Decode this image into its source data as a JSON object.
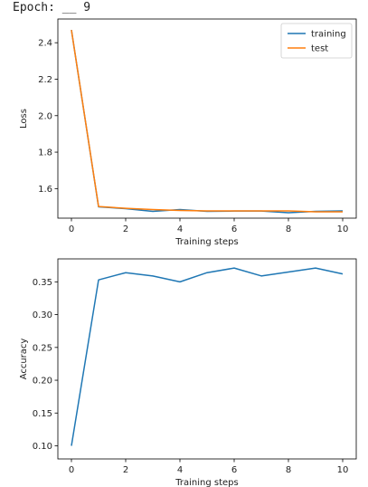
{
  "epoch_label": "Epoch: __ 9",
  "chart_data": [
    {
      "type": "line",
      "xlabel": "Training steps",
      "ylabel": "Loss",
      "xlim": [
        -0.5,
        10.5
      ],
      "ylim": [
        1.438,
        2.53
      ],
      "xticks": [
        0,
        2,
        4,
        6,
        8,
        10
      ],
      "yticks": [
        1.6,
        1.8,
        2.0,
        2.2,
        2.4
      ],
      "ytick_labels": [
        "1.6",
        "1.8",
        "2.0",
        "2.2",
        "2.4"
      ],
      "grid": false,
      "legend": "top-right",
      "x": [
        0,
        1,
        2,
        3,
        4,
        5,
        6,
        7,
        8,
        9,
        10
      ],
      "series": [
        {
          "name": "training",
          "color": "#1f77b4",
          "values": [
            2.47,
            1.5,
            1.49,
            1.475,
            1.485,
            1.475,
            1.477,
            1.477,
            1.468,
            1.475,
            1.478
          ]
        },
        {
          "name": "test",
          "color": "#ff7f0e",
          "values": [
            2.47,
            1.502,
            1.492,
            1.485,
            1.48,
            1.478,
            1.478,
            1.478,
            1.478,
            1.473,
            1.473
          ]
        }
      ]
    },
    {
      "type": "line",
      "xlabel": "Training steps",
      "ylabel": "Accuracy",
      "xlim": [
        -0.5,
        10.5
      ],
      "ylim": [
        0.08,
        0.385
      ],
      "xticks": [
        0,
        2,
        4,
        6,
        8,
        10
      ],
      "yticks": [
        0.1,
        0.15,
        0.2,
        0.25,
        0.3,
        0.35
      ],
      "ytick_labels": [
        "0.10",
        "0.15",
        "0.20",
        "0.25",
        "0.30",
        "0.35"
      ],
      "grid": false,
      "x": [
        0,
        1,
        2,
        3,
        4,
        5,
        6,
        7,
        8,
        9,
        10
      ],
      "series": [
        {
          "color": "#1f77b4",
          "values": [
            0.1,
            0.353,
            0.364,
            0.359,
            0.35,
            0.364,
            0.371,
            0.359,
            0.365,
            0.371,
            0.362
          ]
        }
      ]
    }
  ]
}
